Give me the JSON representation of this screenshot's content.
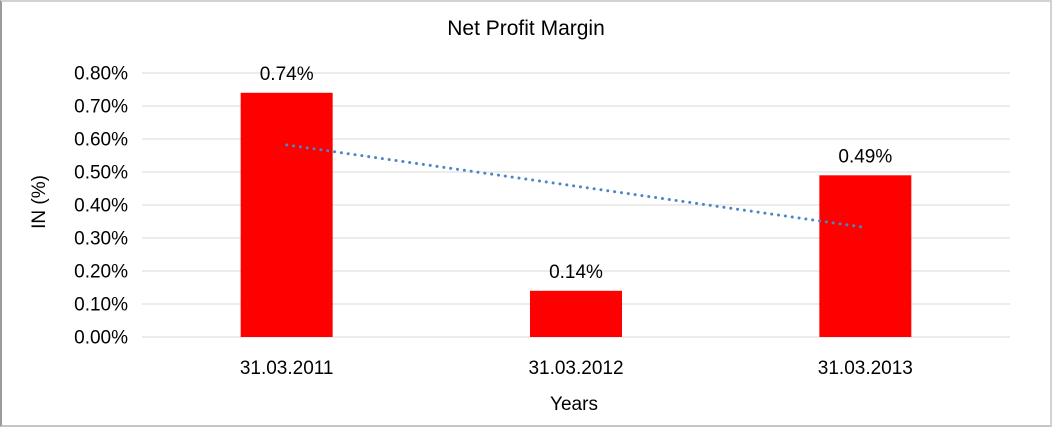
{
  "chart_data": {
    "type": "bar",
    "title": "Net Profit Margin",
    "xlabel": "Years",
    "ylabel": "IN (%)",
    "categories": [
      "31.03.2011",
      "31.03.2012",
      "31.03.2013"
    ],
    "values": [
      0.74,
      0.14,
      0.49
    ],
    "data_labels": [
      "0.74%",
      "0.14%",
      "0.49%"
    ],
    "y_ticks": [
      "0.00%",
      "0.10%",
      "0.20%",
      "0.30%",
      "0.40%",
      "0.50%",
      "0.60%",
      "0.70%",
      "0.80%"
    ],
    "ylim": [
      0,
      0.8
    ],
    "grid": "horizontal",
    "legend": "none",
    "bar_color": "#ff0000",
    "gridline_color": "#d9d9d9",
    "text_color": "#000000",
    "background_color": "#ffffff",
    "trendline": {
      "type": "linear",
      "style": "dotted",
      "color": "#4a86c8",
      "start_value": 0.582,
      "end_value": 0.332
    }
  }
}
